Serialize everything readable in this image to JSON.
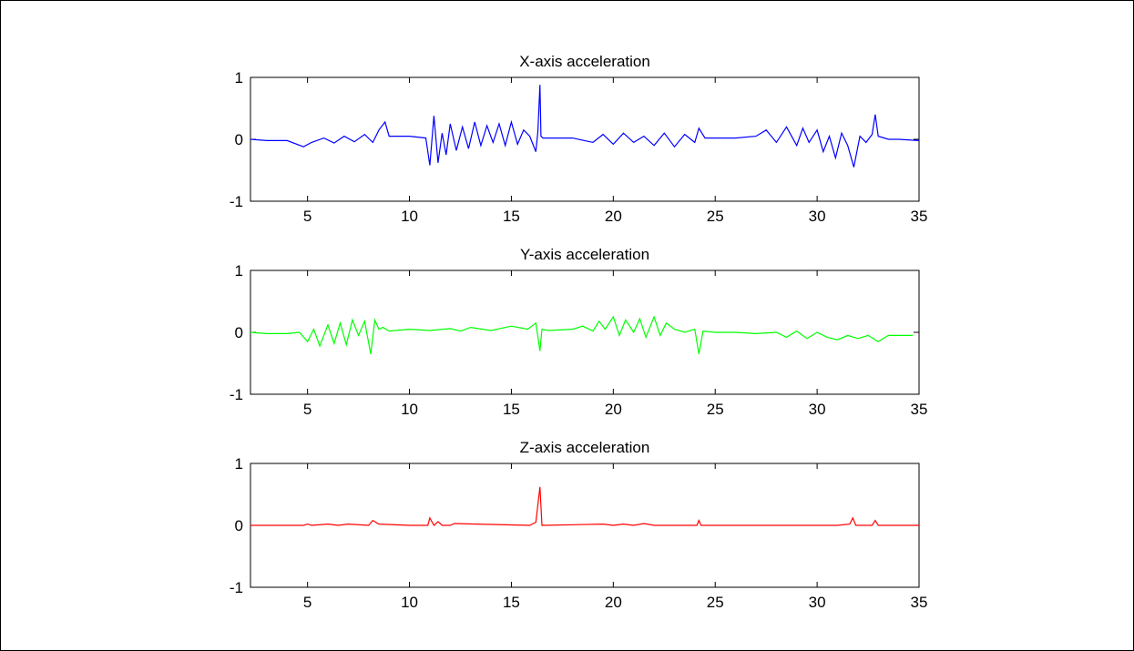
{
  "chart_data": [
    {
      "type": "line",
      "title": "X-axis acceleration",
      "color": "#0000ff",
      "xlim": [
        2.2,
        35
      ],
      "ylim": [
        -1,
        1
      ],
      "xticks": [
        "5",
        "10",
        "15",
        "20",
        "25",
        "30",
        "35"
      ],
      "yticks": [
        "1",
        "0",
        "-1"
      ],
      "x": [
        2.2,
        3.0,
        4.0,
        4.8,
        5.2,
        5.8,
        6.3,
        6.8,
        7.3,
        7.8,
        8.2,
        8.5,
        8.8,
        9.0,
        10.0,
        10.8,
        11.0,
        11.2,
        11.4,
        11.6,
        11.8,
        12.0,
        12.3,
        12.6,
        12.9,
        13.2,
        13.5,
        13.8,
        14.1,
        14.4,
        14.7,
        15.0,
        15.3,
        15.6,
        15.9,
        16.2,
        16.3,
        16.4,
        16.45,
        16.55,
        16.7,
        18.0,
        19.0,
        19.5,
        20.0,
        20.5,
        21.0,
        21.5,
        22.0,
        22.5,
        23.0,
        23.5,
        24.0,
        24.2,
        24.5,
        25.0,
        26.0,
        27.0,
        27.5,
        28.0,
        28.5,
        29.0,
        29.3,
        29.6,
        30.0,
        30.3,
        30.6,
        30.9,
        31.2,
        31.5,
        31.8,
        32.1,
        32.4,
        32.7,
        32.85,
        33.0,
        33.5,
        34.0,
        35.0
      ],
      "y": [
        0.0,
        -0.02,
        -0.02,
        -0.12,
        -0.05,
        0.02,
        -0.06,
        0.05,
        -0.04,
        0.08,
        -0.05,
        0.15,
        0.28,
        0.05,
        0.05,
        0.02,
        -0.42,
        0.38,
        -0.38,
        0.1,
        -0.25,
        0.25,
        -0.18,
        0.2,
        -0.15,
        0.28,
        -0.1,
        0.22,
        -0.05,
        0.25,
        -0.1,
        0.28,
        -0.08,
        0.15,
        0.05,
        -0.2,
        0.12,
        0.88,
        0.05,
        0.02,
        0.02,
        0.02,
        -0.05,
        0.08,
        -0.08,
        0.1,
        -0.05,
        0.05,
        -0.1,
        0.1,
        -0.12,
        0.08,
        -0.05,
        0.18,
        0.02,
        0.02,
        0.02,
        0.05,
        0.15,
        -0.05,
        0.2,
        -0.1,
        0.18,
        -0.05,
        0.15,
        -0.2,
        0.05,
        -0.3,
        0.1,
        -0.1,
        -0.45,
        0.05,
        -0.05,
        0.08,
        0.4,
        0.05,
        0.0,
        0.0,
        -0.02
      ]
    },
    {
      "type": "line",
      "title": "Y-axis acceleration",
      "color": "#00ff00",
      "xlim": [
        2.2,
        35
      ],
      "ylim": [
        -1,
        1
      ],
      "xticks": [
        "5",
        "10",
        "15",
        "20",
        "25",
        "30",
        "35"
      ],
      "yticks": [
        "1",
        "0",
        "-1"
      ],
      "x": [
        2.2,
        3.0,
        4.0,
        4.6,
        5.0,
        5.3,
        5.6,
        6.0,
        6.3,
        6.6,
        6.9,
        7.2,
        7.5,
        7.8,
        8.1,
        8.3,
        8.5,
        8.7,
        9.0,
        10.0,
        11.0,
        12.0,
        12.5,
        13.0,
        14.0,
        15.0,
        15.8,
        16.2,
        16.4,
        16.5,
        16.8,
        18.0,
        18.5,
        19.0,
        19.3,
        19.6,
        20.0,
        20.3,
        20.6,
        21.0,
        21.3,
        21.6,
        22.0,
        22.3,
        22.6,
        23.0,
        23.5,
        24.0,
        24.2,
        24.4,
        25.0,
        26.0,
        27.0,
        28.0,
        28.5,
        29.0,
        29.5,
        30.0,
        30.5,
        31.0,
        31.5,
        32.0,
        32.5,
        33.0,
        33.5,
        34.0,
        34.7
      ],
      "y": [
        0.0,
        -0.02,
        -0.02,
        0.0,
        -0.15,
        0.05,
        -0.22,
        0.12,
        -0.18,
        0.15,
        -0.2,
        0.2,
        -0.05,
        0.18,
        -0.35,
        0.2,
        0.05,
        0.08,
        0.02,
        0.05,
        0.03,
        0.06,
        0.02,
        0.08,
        0.03,
        0.1,
        0.05,
        0.15,
        -0.3,
        0.05,
        0.03,
        0.05,
        0.1,
        0.02,
        0.18,
        0.05,
        0.25,
        -0.05,
        0.2,
        0.0,
        0.22,
        -0.08,
        0.25,
        -0.05,
        0.15,
        0.05,
        0.0,
        0.05,
        -0.35,
        0.02,
        0.0,
        0.0,
        -0.02,
        0.0,
        -0.08,
        0.02,
        -0.1,
        0.0,
        -0.08,
        -0.12,
        -0.05,
        -0.1,
        -0.05,
        -0.15,
        -0.05,
        -0.05,
        -0.05
      ]
    },
    {
      "type": "line",
      "title": "Z-axis acceleration",
      "color": "#ff0000",
      "xlim": [
        2.2,
        35
      ],
      "ylim": [
        -1,
        1
      ],
      "xticks": [
        "5",
        "10",
        "15",
        "20",
        "25",
        "30",
        "35"
      ],
      "yticks": [
        "1",
        "0",
        "-1"
      ],
      "x": [
        2.2,
        4.8,
        5.0,
        5.2,
        6.0,
        6.5,
        7.0,
        8.0,
        8.2,
        8.5,
        10.0,
        10.9,
        11.0,
        11.2,
        11.4,
        11.6,
        12.0,
        12.2,
        15.9,
        16.2,
        16.4,
        16.5,
        16.6,
        19.5,
        20.0,
        20.5,
        21.0,
        21.5,
        22.0,
        24.1,
        24.2,
        24.3,
        31.0,
        31.6,
        31.75,
        31.9,
        32.7,
        32.85,
        33.0,
        35.0
      ],
      "y": [
        0.0,
        0.0,
        0.02,
        0.0,
        0.02,
        0.0,
        0.02,
        0.0,
        0.08,
        0.02,
        0.0,
        0.0,
        0.12,
        0.0,
        0.06,
        0.0,
        0.0,
        0.03,
        0.0,
        0.05,
        0.62,
        0.0,
        0.0,
        0.02,
        0.0,
        0.02,
        0.0,
        0.03,
        0.0,
        0.0,
        0.08,
        0.0,
        0.0,
        0.02,
        0.12,
        0.0,
        0.0,
        0.08,
        0.0,
        0.0
      ]
    }
  ]
}
